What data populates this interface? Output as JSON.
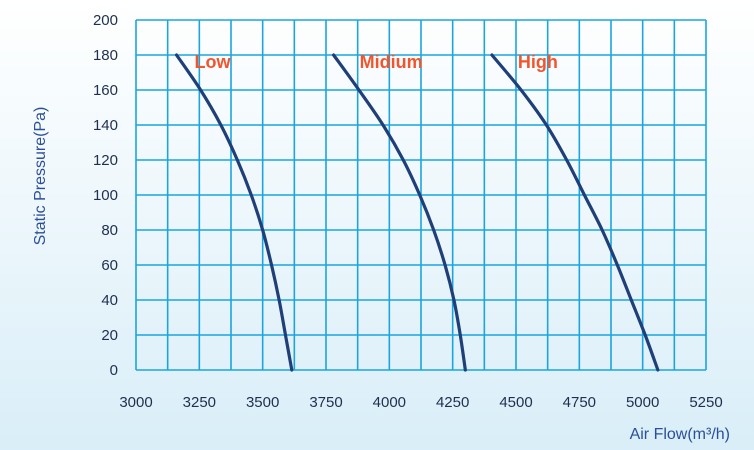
{
  "colors": {
    "grid": "#1aa5df",
    "curve": "#1f3f78",
    "label": "#f2552e",
    "tick_text": "#1f2f4f",
    "axis_text": "#2b4f9a",
    "background_top": "#ffffff",
    "background_bottom": "#d9eef8"
  },
  "chart_data": {
    "type": "line",
    "title": "",
    "xlabel": "Air Flow(m³/h)",
    "ylabel": "Static Pressure(Pa)",
    "xlim": [
      3000,
      5250
    ],
    "ylim": [
      0,
      200
    ],
    "x_ticks": [
      3000,
      3250,
      3500,
      3750,
      4000,
      4250,
      4500,
      4750,
      5000,
      5250
    ],
    "y_ticks": [
      0,
      20,
      40,
      60,
      80,
      100,
      120,
      140,
      160,
      180,
      200
    ],
    "grid": true,
    "legend": "inline labels near top of curves",
    "series": [
      {
        "name": "Low",
        "points": [
          {
            "x": 3160,
            "y": 180
          },
          {
            "x": 3255,
            "y": 160
          },
          {
            "x": 3335,
            "y": 140
          },
          {
            "x": 3400,
            "y": 120
          },
          {
            "x": 3455,
            "y": 100
          },
          {
            "x": 3500,
            "y": 80
          },
          {
            "x": 3535,
            "y": 60
          },
          {
            "x": 3565,
            "y": 40
          },
          {
            "x": 3590,
            "y": 20
          },
          {
            "x": 3615,
            "y": 0
          }
        ]
      },
      {
        "name": "Midium",
        "points": [
          {
            "x": 3780,
            "y": 180
          },
          {
            "x": 3880,
            "y": 160
          },
          {
            "x": 3975,
            "y": 140
          },
          {
            "x": 4055,
            "y": 120
          },
          {
            "x": 4120,
            "y": 100
          },
          {
            "x": 4175,
            "y": 80
          },
          {
            "x": 4220,
            "y": 60
          },
          {
            "x": 4255,
            "y": 40
          },
          {
            "x": 4280,
            "y": 20
          },
          {
            "x": 4300,
            "y": 0
          }
        ]
      },
      {
        "name": "High",
        "points": [
          {
            "x": 4405,
            "y": 180
          },
          {
            "x": 4520,
            "y": 160
          },
          {
            "x": 4620,
            "y": 140
          },
          {
            "x": 4700,
            "y": 120
          },
          {
            "x": 4770,
            "y": 100
          },
          {
            "x": 4840,
            "y": 80
          },
          {
            "x": 4900,
            "y": 60
          },
          {
            "x": 4955,
            "y": 40
          },
          {
            "x": 5010,
            "y": 20
          },
          {
            "x": 5060,
            "y": 0
          }
        ]
      }
    ]
  }
}
